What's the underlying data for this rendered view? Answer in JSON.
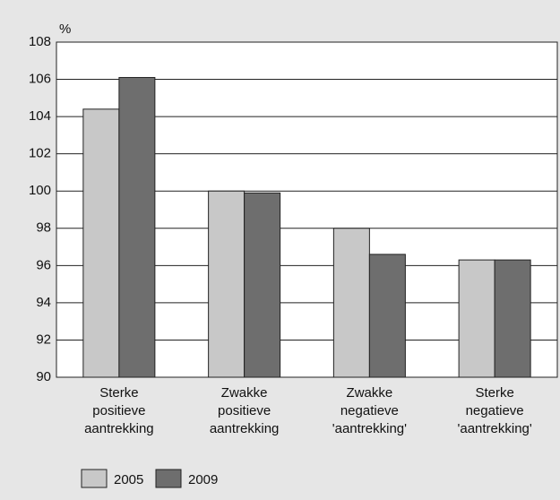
{
  "chart_data": {
    "type": "bar",
    "y_unit": "%",
    "categories": [
      "Sterke\npositieve\naantrekking",
      "Zwakke\npositieve\naantrekking",
      "Zwakke\nnegatieve\n'aantrekking'",
      "Sterke\nnegatieve\n'aantrekking'"
    ],
    "series": [
      {
        "name": "2005",
        "color": "#c8c8c8",
        "values": [
          104.4,
          100,
          98,
          96.3
        ]
      },
      {
        "name": "2009",
        "color": "#6e6e6e",
        "values": [
          106.1,
          99.9,
          96.6,
          96.3
        ]
      }
    ],
    "ylim": [
      90,
      108
    ],
    "yticks": [
      90,
      92,
      94,
      96,
      98,
      100,
      102,
      104,
      106,
      108
    ],
    "grid": true
  }
}
